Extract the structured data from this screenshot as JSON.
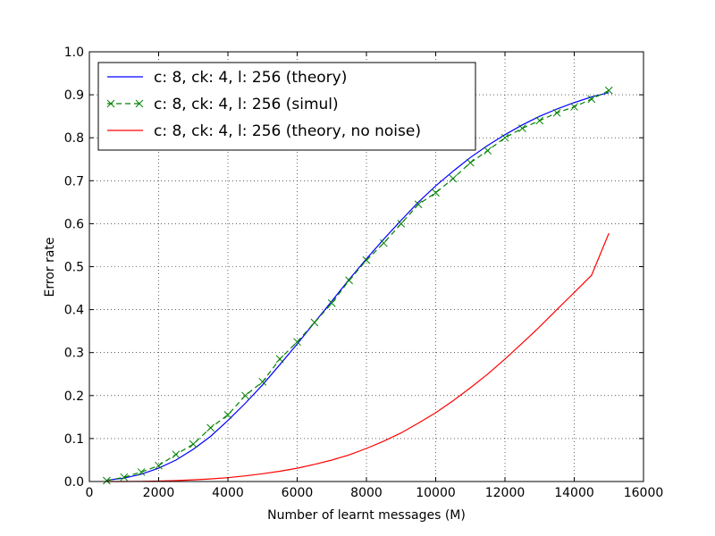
{
  "chart_data": {
    "type": "line",
    "title": "",
    "xlabel": "Number of learnt messages (M)",
    "ylabel": "Error rate",
    "xlim": [
      0,
      16000
    ],
    "ylim": [
      0,
      1.0
    ],
    "xticks": [
      0,
      2000,
      4000,
      6000,
      8000,
      10000,
      12000,
      14000,
      16000
    ],
    "yticks": [
      0.0,
      0.1,
      0.2,
      0.3,
      0.4,
      0.5,
      0.6,
      0.7,
      0.8,
      0.9,
      1.0
    ],
    "xtick_labels": [
      "0",
      "2000",
      "4000",
      "6000",
      "8000",
      "10000",
      "12000",
      "14000",
      "16000"
    ],
    "ytick_labels": [
      "0.0",
      "0.1",
      "0.2",
      "0.3",
      "0.4",
      "0.5",
      "0.6",
      "0.7",
      "0.8",
      "0.9",
      "1.0"
    ],
    "grid": true,
    "legend_position": "top-left",
    "series": [
      {
        "name": "c: 8, ck: 4, l: 256 (theory)",
        "color": "#0000ff",
        "style": "solid",
        "marker": "none",
        "x": [
          500,
          1000,
          1500,
          2000,
          2500,
          3000,
          3500,
          4000,
          4500,
          5000,
          5500,
          6000,
          6500,
          7000,
          7500,
          8000,
          8500,
          9000,
          9500,
          10000,
          10500,
          11000,
          11500,
          12000,
          12500,
          13000,
          13500,
          14000,
          14500,
          15000
        ],
        "y": [
          0.003,
          0.008,
          0.017,
          0.031,
          0.05,
          0.075,
          0.105,
          0.142,
          0.182,
          0.225,
          0.272,
          0.32,
          0.37,
          0.42,
          0.47,
          0.518,
          0.564,
          0.608,
          0.65,
          0.688,
          0.722,
          0.754,
          0.782,
          0.807,
          0.83,
          0.85,
          0.867,
          0.882,
          0.895,
          0.905
        ]
      },
      {
        "name": "c: 8, ck: 4, l: 256 (simul)",
        "color": "#008000",
        "style": "dashed",
        "marker": "x",
        "x": [
          500,
          1000,
          1500,
          2000,
          2500,
          3000,
          3500,
          4000,
          4500,
          5000,
          5500,
          6000,
          6500,
          7000,
          7500,
          8000,
          8500,
          9000,
          9500,
          10000,
          10500,
          11000,
          11500,
          12000,
          12500,
          13000,
          13500,
          14000,
          14500,
          15000
        ],
        "y": [
          0.002,
          0.01,
          0.022,
          0.037,
          0.063,
          0.087,
          0.125,
          0.155,
          0.2,
          0.232,
          0.285,
          0.325,
          0.37,
          0.415,
          0.468,
          0.515,
          0.555,
          0.6,
          0.645,
          0.672,
          0.705,
          0.742,
          0.77,
          0.8,
          0.822,
          0.84,
          0.858,
          0.872,
          0.89,
          0.91
        ]
      },
      {
        "name": "c: 8, ck: 4, l: 256 (theory, no noise)",
        "color": "#ff0000",
        "style": "solid",
        "marker": "none",
        "x": [
          500,
          1000,
          1500,
          2000,
          2500,
          3000,
          3500,
          4000,
          4500,
          5000,
          5500,
          6000,
          6500,
          7000,
          7500,
          8000,
          8500,
          9000,
          9500,
          10000,
          10500,
          11000,
          11500,
          12000,
          12500,
          13000,
          13500,
          14000,
          14500,
          15000
        ],
        "y": [
          0.0,
          0.0,
          0.0005,
          0.001,
          0.002,
          0.004,
          0.006,
          0.009,
          0.013,
          0.018,
          0.024,
          0.031,
          0.04,
          0.05,
          0.062,
          0.077,
          0.094,
          0.113,
          0.136,
          0.16,
          0.188,
          0.218,
          0.25,
          0.285,
          0.322,
          0.36,
          0.4,
          0.44,
          0.48,
          0.578
        ]
      }
    ]
  }
}
